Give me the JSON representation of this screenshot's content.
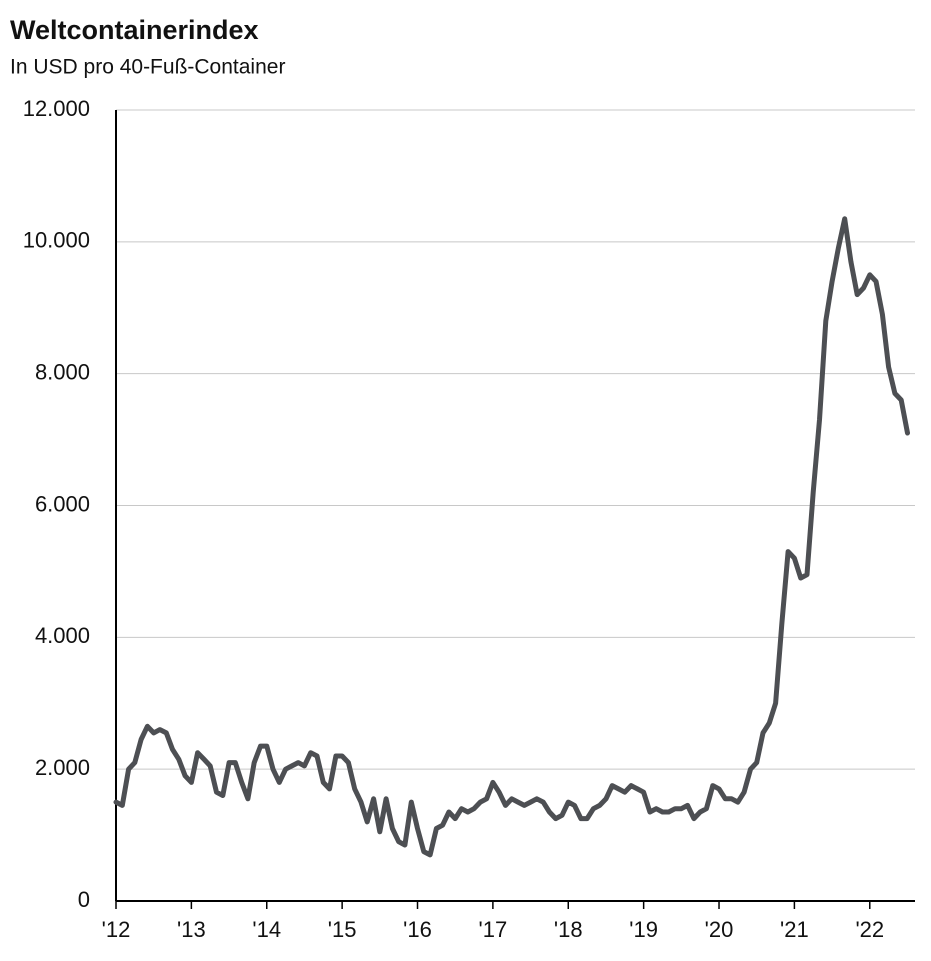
{
  "chart_data": {
    "type": "line",
    "title": "Weltcontainerindex",
    "subtitle": "In USD pro 40-Fuß-Container",
    "x": [
      2012,
      2012.083,
      2012.167,
      2012.25,
      2012.333,
      2012.417,
      2012.5,
      2012.583,
      2012.667,
      2012.75,
      2012.833,
      2012.917,
      2013,
      2013.083,
      2013.167,
      2013.25,
      2013.333,
      2013.417,
      2013.5,
      2013.583,
      2013.667,
      2013.75,
      2013.833,
      2013.917,
      2014,
      2014.083,
      2014.167,
      2014.25,
      2014.333,
      2014.417,
      2014.5,
      2014.583,
      2014.667,
      2014.75,
      2014.833,
      2014.917,
      2015,
      2015.083,
      2015.167,
      2015.25,
      2015.333,
      2015.417,
      2015.5,
      2015.583,
      2015.667,
      2015.75,
      2015.833,
      2015.917,
      2016,
      2016.083,
      2016.167,
      2016.25,
      2016.333,
      2016.417,
      2016.5,
      2016.583,
      2016.667,
      2016.75,
      2016.833,
      2016.917,
      2017,
      2017.083,
      2017.167,
      2017.25,
      2017.333,
      2017.417,
      2017.5,
      2017.583,
      2017.667,
      2017.75,
      2017.833,
      2017.917,
      2018,
      2018.083,
      2018.167,
      2018.25,
      2018.333,
      2018.417,
      2018.5,
      2018.583,
      2018.667,
      2018.75,
      2018.833,
      2018.917,
      2019,
      2019.083,
      2019.167,
      2019.25,
      2019.333,
      2019.417,
      2019.5,
      2019.583,
      2019.667,
      2019.75,
      2019.833,
      2019.917,
      2020,
      2020.083,
      2020.167,
      2020.25,
      2020.333,
      2020.417,
      2020.5,
      2020.583,
      2020.667,
      2020.75,
      2020.833,
      2020.917,
      2021,
      2021.083,
      2021.167,
      2021.25,
      2021.333,
      2021.417,
      2021.5,
      2021.583,
      2021.667,
      2021.75,
      2021.833,
      2021.917,
      2022,
      2022.083,
      2022.167,
      2022.25,
      2022.333,
      2022.417,
      2022.5
    ],
    "series": [
      {
        "color": "#4d4f53",
        "values": [
          1500,
          1450,
          2000,
          2100,
          2450,
          2650,
          2550,
          2600,
          2550,
          2300,
          2150,
          1900,
          1800,
          2250,
          2150,
          2050,
          1650,
          1600,
          2100,
          2100,
          1800,
          1550,
          2100,
          2350,
          2350,
          2000,
          1800,
          2000,
          2050,
          2100,
          2050,
          2250,
          2200,
          1800,
          1700,
          2200,
          2200,
          2100,
          1700,
          1500,
          1200,
          1550,
          1050,
          1550,
          1100,
          900,
          850,
          1500,
          1100,
          750,
          700,
          1100,
          1150,
          1350,
          1250,
          1400,
          1350,
          1400,
          1500,
          1550,
          1800,
          1650,
          1450,
          1550,
          1500,
          1450,
          1500,
          1550,
          1500,
          1350,
          1250,
          1300,
          1500,
          1450,
          1250,
          1250,
          1400,
          1450,
          1550,
          1750,
          1700,
          1650,
          1750,
          1700,
          1650,
          1350,
          1400,
          1350,
          1350,
          1400,
          1400,
          1450,
          1250,
          1350,
          1400,
          1750,
          1700,
          1550,
          1550,
          1500,
          1650,
          2000,
          2100,
          2550,
          2700,
          3000,
          4200,
          5300,
          5200,
          4900,
          4950,
          6200,
          7300,
          8800,
          9400,
          9900,
          10350,
          9700,
          9200,
          9300,
          9500,
          9400,
          8900,
          8100,
          7700,
          7600,
          7100
        ]
      }
    ],
    "xlim": [
      2012,
      2022.6
    ],
    "xticks": [
      {
        "value": 2012,
        "label": "'12"
      },
      {
        "value": 2013,
        "label": "'13"
      },
      {
        "value": 2014,
        "label": "'14"
      },
      {
        "value": 2015,
        "label": "'15"
      },
      {
        "value": 2016,
        "label": "'16"
      },
      {
        "value": 2017,
        "label": "'17"
      },
      {
        "value": 2018,
        "label": "'18"
      },
      {
        "value": 2019,
        "label": "'19"
      },
      {
        "value": 2020,
        "label": "'20"
      },
      {
        "value": 2021,
        "label": "'21"
      },
      {
        "value": 2022,
        "label": "'22"
      }
    ],
    "ylim": [
      0,
      12000
    ],
    "yticks": [
      0,
      {
        "value": 2000,
        "label": "2.000"
      },
      {
        "value": 4000,
        "label": "4.000"
      },
      {
        "value": 6000,
        "label": "6.000"
      },
      {
        "value": 8000,
        "label": "8.000"
      },
      {
        "value": 10000,
        "label": "10.000"
      },
      {
        "value": 12000,
        "label": "12.000"
      }
    ],
    "grid": true
  }
}
